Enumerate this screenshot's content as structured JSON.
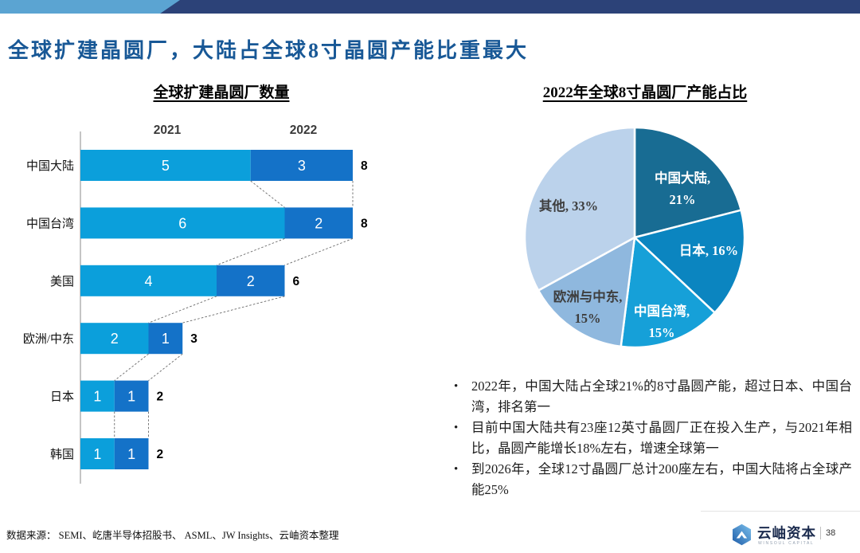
{
  "banner": {
    "light_color": "#5BA4D2",
    "dark_color": "#2C4278"
  },
  "title": "全球扩建晶圆厂，大陆占全球8寸晶圆产能比重最大",
  "chart_data": [
    {
      "type": "bar",
      "title": "全球扩建晶圆厂数量",
      "orientation": "horizontal_stacked",
      "categories": [
        "中国大陆",
        "中国台湾",
        "美国",
        "欧洲/中东",
        "日本",
        "韩国"
      ],
      "series": [
        {
          "name": "2021",
          "color": "#0B9FDB",
          "values": [
            5,
            6,
            4,
            2,
            1,
            1
          ]
        },
        {
          "name": "2022",
          "color": "#1472C8",
          "values": [
            3,
            2,
            2,
            1,
            1,
            1
          ]
        }
      ],
      "totals": [
        8,
        8,
        6,
        3,
        2,
        2
      ],
      "xlim": [
        0,
        8
      ],
      "grid": false,
      "connector_style": "dashed",
      "value_label_color": "#FFFFFF",
      "total_label_color": "#000000"
    },
    {
      "type": "pie",
      "title": "2022年全球8寸晶圆厂产能占比",
      "start_angle_deg": -90,
      "direction": "clockwise",
      "slices": [
        {
          "name": "中国大陆",
          "value": 21,
          "color": "#186C93",
          "label_lines": [
            "中国大陆,",
            "21%"
          ],
          "label_color": "#FFFFFF",
          "label_pos": [
            317,
            134
          ]
        },
        {
          "name": "日本",
          "value": 16,
          "color": "#0B85C0",
          "label_lines": [
            "日本, 16%"
          ],
          "label_color": "#FFFFFF",
          "label_pos": [
            350,
            225
          ]
        },
        {
          "name": "中国台湾",
          "value": 15,
          "color": "#16A0D8",
          "label_lines": [
            "中国台湾,",
            "15%"
          ],
          "label_color": "#FFFFFF",
          "label_pos": [
            291,
            301
          ]
        },
        {
          "name": "欧洲与中东",
          "value": 15,
          "color": "#8FB8DE",
          "label_lines": [
            "欧洲与中东,",
            "15%"
          ],
          "label_color": "#3E3E3E",
          "label_pos": [
            198,
            283
          ]
        },
        {
          "name": "其他",
          "value": 33,
          "color": "#BBD2EB",
          "label_lines": [
            "其他, 33%"
          ],
          "label_color": "#3E3E3E",
          "label_pos": [
            174,
            169
          ]
        }
      ]
    }
  ],
  "bullets": [
    "2022年，中国大陆占全球21%的8寸晶圆产能，超过日本、中国台湾，排名第一",
    "目前中国大陆共有23座12英寸晶圆厂正在投入生产，与2021年相比，晶圆产能增长18%左右，增速全球第一",
    "到2026年，全球12寸晶圆厂总计200座左右，中国大陆将占全球产能25%"
  ],
  "footer": {
    "source": "数据来源： SEMI、屹唐半导体招股书、 ASML、JW Insights、云岫资本整理",
    "brand": "云岫资本",
    "brand_sub": "WINSOUL CAPITAL",
    "page": "38"
  }
}
